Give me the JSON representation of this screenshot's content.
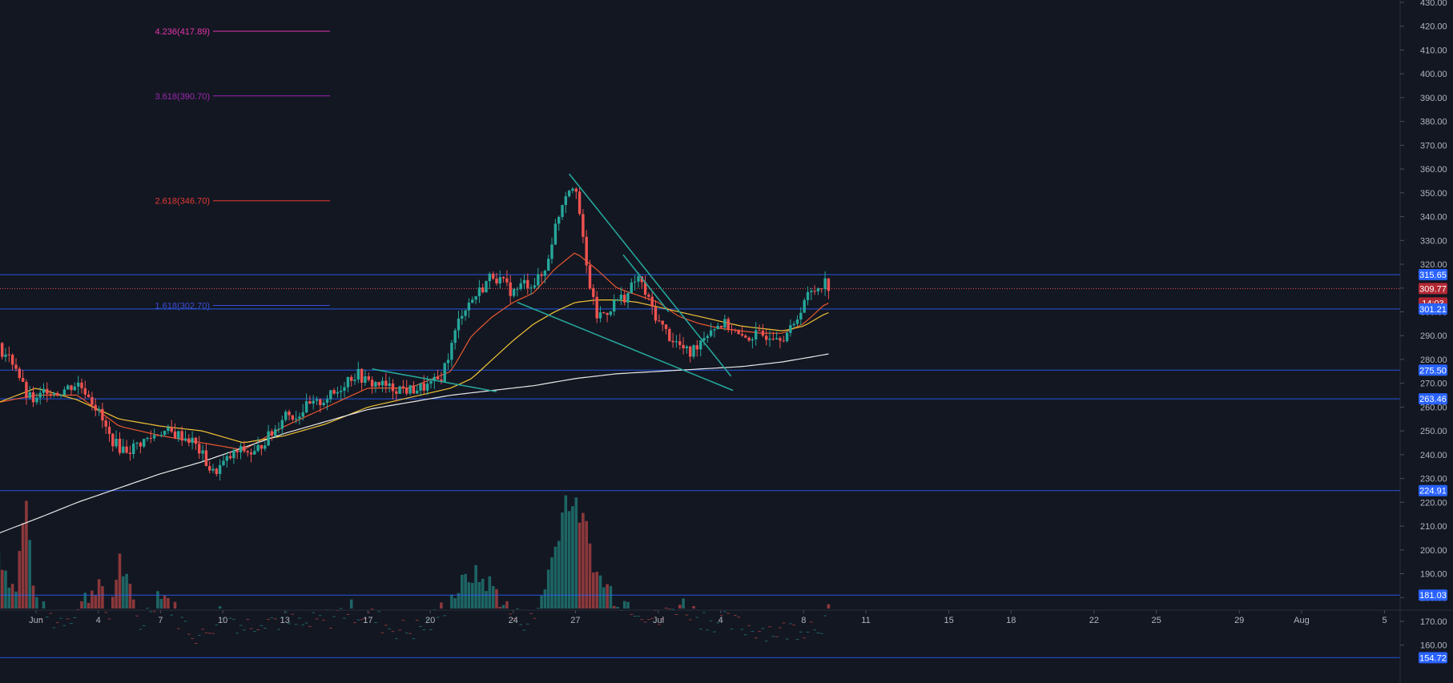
{
  "chart_data": {
    "type": "candlestick",
    "y_axis": {
      "min": 152,
      "max": 432,
      "side": "right",
      "ticks": [
        160,
        170,
        180,
        190,
        200,
        210,
        220,
        230,
        240,
        250,
        260,
        270,
        280,
        290,
        300,
        310,
        320,
        330,
        340,
        350,
        360,
        370,
        380,
        390,
        400,
        410,
        420,
        430
      ],
      "tick_labels": [
        "160.00",
        "170.00",
        "180.00",
        "190.00",
        "200.00",
        "210.00",
        "220.00",
        "230.00",
        "240.00",
        "250.00",
        "260.00",
        "270.00",
        "280.00",
        "290.00",
        "300.00",
        "310.00",
        "320.00",
        "330.00",
        "340.00",
        "350.00",
        "360.00",
        "370.00",
        "380.00",
        "390.00",
        "400.00",
        "410.00",
        "420.00",
        "430.00"
      ]
    },
    "x_axis": {
      "labels": [
        {
          "text": "Jun",
          "day": 1
        },
        {
          "text": "4",
          "day": 4
        },
        {
          "text": "7",
          "day": 7
        },
        {
          "text": "10",
          "day": 10
        },
        {
          "text": "13",
          "day": 13
        },
        {
          "text": "17",
          "day": 17
        },
        {
          "text": "20",
          "day": 20
        },
        {
          "text": "24",
          "day": 24
        },
        {
          "text": "27",
          "day": 27
        },
        {
          "text": "Jul",
          "day": 31
        },
        {
          "text": "4",
          "day": 34
        },
        {
          "text": "8",
          "day": 38
        },
        {
          "text": "11",
          "day": 41
        },
        {
          "text": "15",
          "day": 45
        },
        {
          "text": "18",
          "day": 48
        },
        {
          "text": "22",
          "day": 52
        },
        {
          "text": "25",
          "day": 55
        },
        {
          "text": "29",
          "day": 59
        },
        {
          "text": "Aug",
          "day": 62
        },
        {
          "text": "5",
          "day": 66
        }
      ]
    },
    "price_path": [
      [
        -0.8,
        285
      ],
      [
        0,
        278
      ],
      [
        0.5,
        265
      ],
      [
        1,
        262
      ],
      [
        1.5,
        268
      ],
      [
        2,
        266
      ],
      [
        2.5,
        268
      ],
      [
        3,
        270
      ],
      [
        3.5,
        266
      ],
      [
        4,
        258
      ],
      [
        4.5,
        248
      ],
      [
        5,
        243
      ],
      [
        5.5,
        242
      ],
      [
        6,
        245
      ],
      [
        6.5,
        247
      ],
      [
        7,
        250
      ],
      [
        7.5,
        249
      ],
      [
        8,
        248
      ],
      [
        8.5,
        246
      ],
      [
        9,
        240
      ],
      [
        9.5,
        232
      ],
      [
        10,
        236
      ],
      [
        10.5,
        240
      ],
      [
        11,
        242
      ],
      [
        11.5,
        240
      ],
      [
        12,
        246
      ],
      [
        12.5,
        250
      ],
      [
        13,
        258
      ],
      [
        13.5,
        256
      ],
      [
        14,
        260
      ],
      [
        14.5,
        261
      ],
      [
        15,
        264
      ],
      [
        15.5,
        266
      ],
      [
        16,
        272
      ],
      [
        16.5,
        274
      ],
      [
        17,
        270
      ],
      [
        17.5,
        270
      ],
      [
        18,
        268
      ],
      [
        18.5,
        268
      ],
      [
        19,
        267
      ],
      [
        19.5,
        268
      ],
      [
        20,
        269
      ],
      [
        20.5,
        272
      ],
      [
        21,
        285
      ],
      [
        21.5,
        300
      ],
      [
        22,
        305
      ],
      [
        22.5,
        310
      ],
      [
        23,
        316
      ],
      [
        23.5,
        312
      ],
      [
        24,
        308
      ],
      [
        24.5,
        312
      ],
      [
        25,
        312
      ],
      [
        25.5,
        316
      ],
      [
        26,
        335
      ],
      [
        26.5,
        350
      ],
      [
        27,
        355
      ],
      [
        27.5,
        320
      ],
      [
        28,
        298
      ],
      [
        28.5,
        300
      ],
      [
        29,
        305
      ],
      [
        29.5,
        307
      ],
      [
        30,
        315
      ],
      [
        30.5,
        305
      ],
      [
        31,
        296
      ],
      [
        31.5,
        290
      ],
      [
        32,
        286
      ],
      [
        32.5,
        282
      ],
      [
        33,
        288
      ],
      [
        33.5,
        293
      ],
      [
        34,
        295
      ],
      [
        34.5,
        294
      ],
      [
        35,
        288
      ],
      [
        35.5,
        290
      ],
      [
        36,
        290
      ],
      [
        36.5,
        291
      ],
      [
        37,
        290
      ],
      [
        37.5,
        293
      ],
      [
        38,
        305
      ],
      [
        38.5,
        309
      ],
      [
        39,
        313
      ],
      [
        39.3,
        309.77
      ]
    ],
    "moving_averages": [
      {
        "color": "#e8572f",
        "values": [
          [
            -0.8,
            262
          ],
          [
            1,
            265
          ],
          [
            3,
            265
          ],
          [
            5,
            252
          ],
          [
            7,
            248
          ],
          [
            9,
            245
          ],
          [
            11,
            242
          ],
          [
            13,
            252
          ],
          [
            15,
            260
          ],
          [
            17,
            268
          ],
          [
            19,
            268
          ],
          [
            21,
            275
          ],
          [
            22,
            290
          ],
          [
            23,
            298
          ],
          [
            24,
            304
          ],
          [
            25,
            308
          ],
          [
            26,
            318
          ],
          [
            27,
            325
          ],
          [
            28,
            318
          ],
          [
            29,
            310
          ],
          [
            30,
            307
          ],
          [
            31,
            304
          ],
          [
            32,
            298
          ],
          [
            33,
            295
          ],
          [
            34,
            293
          ],
          [
            35,
            292
          ],
          [
            36,
            291
          ],
          [
            37,
            291
          ],
          [
            38,
            295
          ],
          [
            39,
            303
          ],
          [
            39.3,
            304
          ]
        ]
      },
      {
        "color": "#f2c335",
        "values": [
          [
            -0.8,
            262
          ],
          [
            1,
            268
          ],
          [
            3,
            263
          ],
          [
            5,
            255
          ],
          [
            7,
            252
          ],
          [
            9,
            250
          ],
          [
            11,
            245
          ],
          [
            13,
            248
          ],
          [
            15,
            253
          ],
          [
            17,
            260
          ],
          [
            19,
            264
          ],
          [
            21,
            268
          ],
          [
            22,
            272
          ],
          [
            23,
            280
          ],
          [
            24,
            288
          ],
          [
            25,
            295
          ],
          [
            26,
            300
          ],
          [
            27,
            304
          ],
          [
            28,
            305
          ],
          [
            29,
            305
          ],
          [
            30,
            304
          ],
          [
            31,
            302
          ],
          [
            32,
            300
          ],
          [
            33,
            298
          ],
          [
            34,
            296
          ],
          [
            35,
            294
          ],
          [
            36,
            293
          ],
          [
            37,
            292
          ],
          [
            38,
            294
          ],
          [
            39,
            299
          ],
          [
            39.3,
            300
          ]
        ]
      },
      {
        "color": "#e9e9ea",
        "values": [
          [
            -0.8,
            207
          ],
          [
            1,
            213
          ],
          [
            3,
            220
          ],
          [
            5,
            226
          ],
          [
            7,
            232
          ],
          [
            9,
            237
          ],
          [
            11,
            243
          ],
          [
            13,
            249
          ],
          [
            15,
            254
          ],
          [
            17,
            259
          ],
          [
            19,
            262
          ],
          [
            21,
            265
          ],
          [
            23,
            267
          ],
          [
            25,
            269
          ],
          [
            27,
            272
          ],
          [
            29,
            274
          ],
          [
            31,
            275
          ],
          [
            33,
            276
          ],
          [
            35,
            277
          ],
          [
            37,
            279
          ],
          [
            39,
            282
          ],
          [
            39.3,
            282.5
          ]
        ]
      }
    ],
    "volume_profile": [
      [
        -0.8,
        199
      ],
      [
        0,
        182
      ],
      [
        0.5,
        222
      ],
      [
        1,
        176
      ],
      [
        2,
        170
      ],
      [
        3,
        175
      ],
      [
        4,
        187
      ],
      [
        4.5,
        170
      ],
      [
        5,
        197
      ],
      [
        6,
        168
      ],
      [
        7,
        184
      ],
      [
        8,
        170
      ],
      [
        9,
        163
      ],
      [
        10,
        175
      ],
      [
        11,
        168
      ],
      [
        12,
        172
      ],
      [
        13,
        170
      ],
      [
        14,
        168
      ],
      [
        15,
        171
      ],
      [
        16,
        175
      ],
      [
        17,
        173
      ],
      [
        18,
        168
      ],
      [
        19,
        166
      ],
      [
        20,
        169
      ],
      [
        21,
        180
      ],
      [
        22,
        190
      ],
      [
        23,
        185
      ],
      [
        24,
        172
      ],
      [
        25,
        170
      ],
      [
        26,
        200
      ],
      [
        26.5,
        222
      ],
      [
        27,
        218
      ],
      [
        27.5,
        210
      ],
      [
        28,
        190
      ],
      [
        29,
        180
      ],
      [
        30,
        176
      ],
      [
        31,
        170
      ],
      [
        32,
        178
      ],
      [
        33,
        172
      ],
      [
        34,
        170
      ],
      [
        35,
        168
      ],
      [
        36,
        167
      ],
      [
        37,
        166
      ],
      [
        38,
        168
      ],
      [
        39,
        170
      ],
      [
        39.3,
        174
      ]
    ],
    "horizontal_levels": [
      315.65,
      301.21,
      275.5,
      263.46,
      224.91,
      181.03,
      154.72
    ],
    "current_price": 309.77,
    "price_labels": [
      "315.65",
      "309.77",
      "14:03",
      "301.21",
      "275.50",
      "263.46",
      "224.91",
      "181.03",
      "154.72"
    ],
    "fib_levels": [
      {
        "label": "4.236(417.89)",
        "price": 417.89,
        "color": "#e535ab"
      },
      {
        "label": "3.618(390.70)",
        "price": 390.7,
        "color": "#9c27b0"
      },
      {
        "label": "2.618(346.70)",
        "price": 346.7,
        "color": "#e53935"
      },
      {
        "label": "1.618(302.70)",
        "price": 302.7,
        "color": "#3d4fd6"
      }
    ],
    "trend_lines": [
      {
        "points": [
          [
            26.7,
            358
          ],
          [
            34.5,
            273
          ]
        ],
        "color": "#26a69a"
      },
      {
        "points": [
          [
            24.2,
            304
          ],
          [
            34.6,
            267
          ]
        ],
        "color": "#26a69a"
      },
      {
        "points": [
          [
            17.2,
            276
          ],
          [
            23.2,
            266.5
          ]
        ],
        "color": "#26a69a"
      },
      {
        "points": [
          [
            29.3,
            324
          ],
          [
            31.5,
            300
          ]
        ],
        "color": "#26a69a"
      }
    ],
    "colors": {
      "background": "#131722",
      "up_candle": "#26a69a",
      "down_candle": "#ef5350",
      "level_line": "#2962ff",
      "level_badge": "#2962ff",
      "current_badge": "#b22833",
      "axis_text": "#b2b5be"
    }
  }
}
